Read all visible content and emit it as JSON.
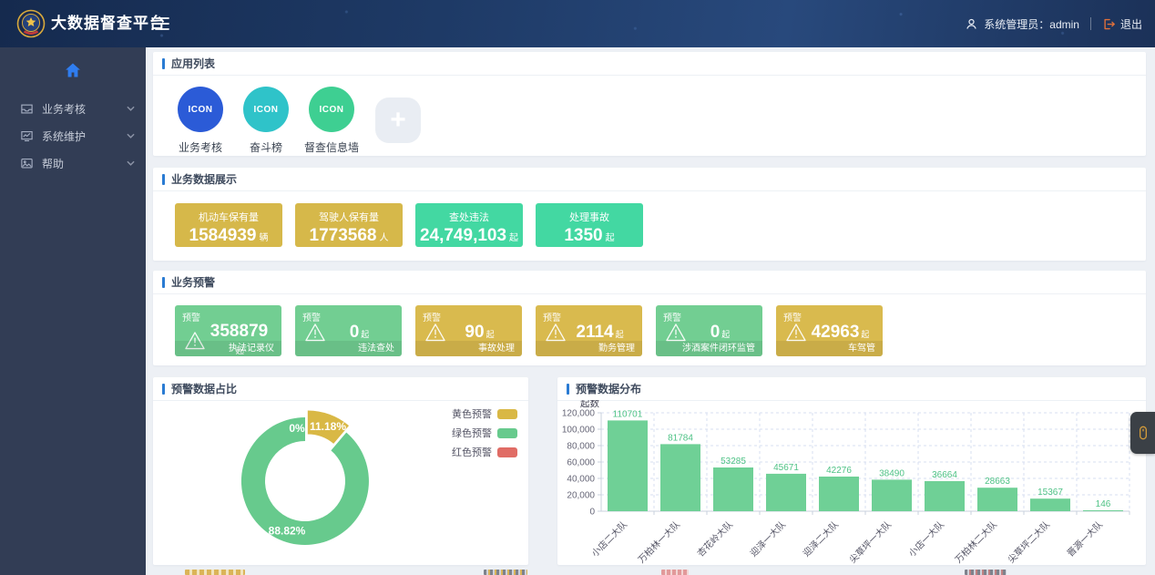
{
  "header": {
    "app_title": "大数据督查平台",
    "user_label": "系统管理员：admin",
    "logout_label": "退出"
  },
  "sidebar": {
    "items": [
      {
        "label": "业务考核",
        "icon": "assessment-icon"
      },
      {
        "label": "系统维护",
        "icon": "maintenance-icon"
      },
      {
        "label": "帮助",
        "icon": "help-icon"
      }
    ]
  },
  "sections": {
    "app_list_title": "应用列表",
    "business_data_title": "业务数据展示",
    "business_warning_title": "业务预警"
  },
  "app_list": {
    "apps": [
      {
        "label": "业务考核",
        "icon_text": "ICON",
        "color": "#2b5bd7"
      },
      {
        "label": "奋斗榜",
        "icon_text": "ICON",
        "color": "#2fc3c9"
      },
      {
        "label": "督查信息墙",
        "icon_text": "ICON",
        "color": "#3ecf92"
      }
    ],
    "add_label": "+"
  },
  "business_data": {
    "cards": [
      {
        "label": "机动车保有量",
        "value": "1584939",
        "unit": "辆",
        "theme": "gold"
      },
      {
        "label": "驾驶人保有量",
        "value": "1773568",
        "unit": "人",
        "theme": "gold"
      },
      {
        "label": "查处违法",
        "value": "24,749,103",
        "unit": "起",
        "theme": "mint"
      },
      {
        "label": "处理事故",
        "value": "1350",
        "unit": "起",
        "theme": "mint"
      }
    ]
  },
  "business_warning": {
    "tag": "预警",
    "unit": "起",
    "cards": [
      {
        "value": "358879",
        "label": "执法记录仪",
        "theme": "green"
      },
      {
        "value": "0",
        "label": "违法查处",
        "theme": "green"
      },
      {
        "value": "90",
        "label": "事故处理",
        "theme": "gold"
      },
      {
        "value": "2114",
        "label": "勤务管理",
        "theme": "gold"
      },
      {
        "value": "0",
        "label": "涉酒案件闭环监管",
        "theme": "green"
      },
      {
        "value": "42963",
        "label": "车驾管",
        "theme": "gold"
      }
    ]
  },
  "chart_data": [
    {
      "type": "pie",
      "donut": true,
      "title": "预警数据占比",
      "legend_position": "top-right",
      "slices": [
        {
          "label": "黄色预警",
          "value": 11.18,
          "display": "11.18%",
          "color": "#d9b845"
        },
        {
          "label": "绿色预警",
          "value": 88.82,
          "display": "88.82%",
          "color": "#67ca8d"
        },
        {
          "label": "红色预警",
          "value": 0,
          "display": "0%",
          "color": "#e06c65"
        }
      ]
    },
    {
      "type": "bar",
      "title": "预警数据分布",
      "ylabel": "起数",
      "categories": [
        "小店二大队",
        "万柏林一大队",
        "杏花岭大队",
        "迎泽一大队",
        "迎泽二大队",
        "尖草坪一大队",
        "小店一大队",
        "万柏林二大队",
        "尖草坪二大队",
        "晋源一大队"
      ],
      "values": [
        110701,
        81784,
        53285,
        45671,
        42276,
        38490,
        36664,
        28663,
        15367,
        146
      ],
      "ylim": [
        0,
        120000
      ],
      "ytick_step": 20000,
      "bar_color": "#6fd096",
      "label_color": "#4ec285",
      "grid": true
    }
  ]
}
